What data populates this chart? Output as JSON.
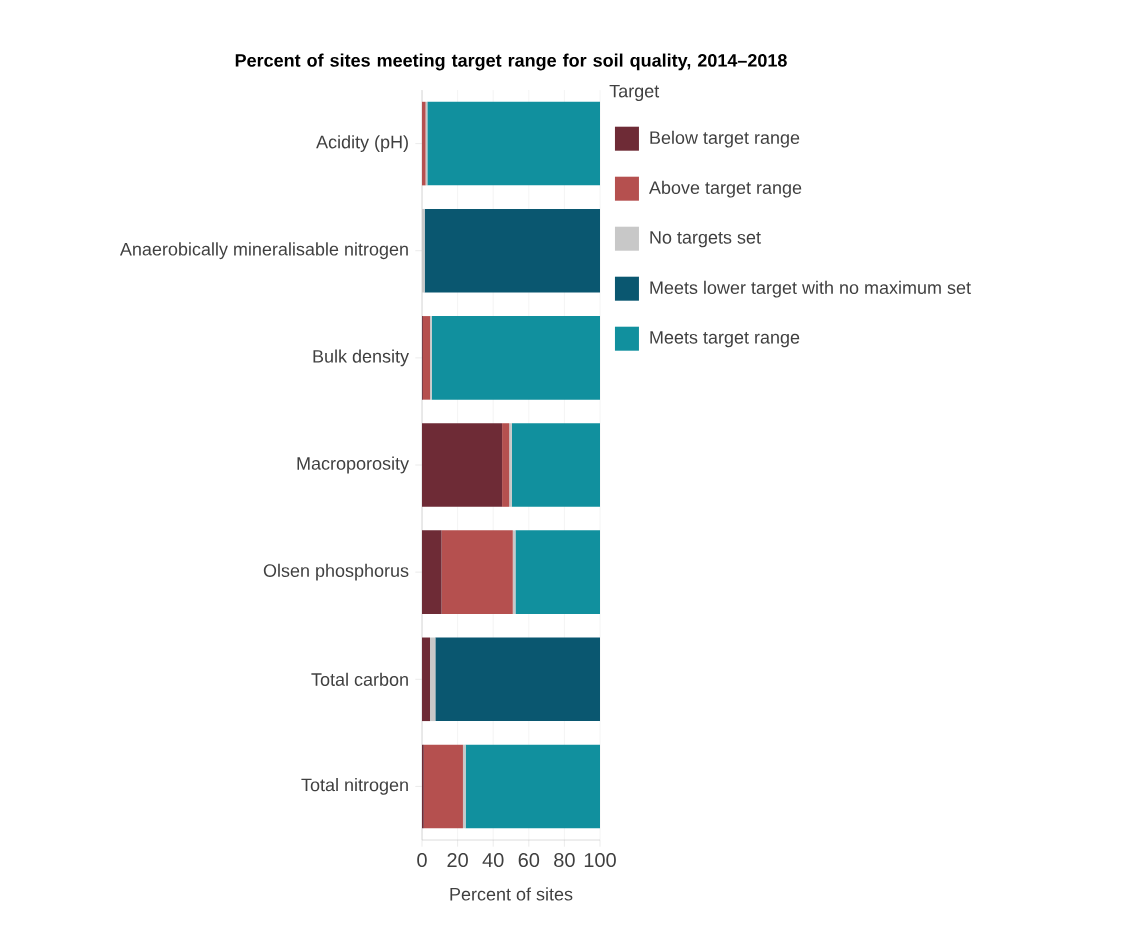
{
  "chart_data": {
    "type": "bar",
    "orientation": "horizontal",
    "stacked": true,
    "title": "Percent of sites meeting target range for soil quality, 2014–2018",
    "xlabel": "Percent of sites",
    "legend_title": "Target",
    "legend": "top right",
    "grid": "x",
    "categories": [
      "Acidity (pH)",
      "Anaerobically mineralisable nitrogen",
      "Bulk density",
      "Macroporosity",
      "Olsen phosphorus",
      "Total carbon",
      "Total nitrogen"
    ],
    "xlim": [
      0,
      100
    ],
    "xticks": [
      0,
      20,
      40,
      60,
      80,
      100
    ],
    "series": [
      {
        "name": "Below target range",
        "color": "#6e2b36",
        "values": [
          0,
          0,
          0.5,
          45,
          11,
          4.5,
          1
        ]
      },
      {
        "name": "Above target range",
        "color": "#b5504f",
        "values": [
          2,
          0,
          4,
          4,
          40,
          0,
          22
        ]
      },
      {
        "name": "No targets set",
        "color": "#c8c8c8",
        "values": [
          1,
          1.5,
          1,
          1.5,
          1.5,
          3,
          1.5
        ]
      },
      {
        "name": "Meets lower target with no maximum set",
        "color": "#0a5770",
        "values": [
          0,
          98.5,
          0,
          0,
          0,
          92.5,
          0
        ]
      },
      {
        "name": "Meets target range",
        "color": "#11909e",
        "values": [
          97,
          0,
          94.5,
          49.5,
          47.5,
          0,
          75.5
        ]
      }
    ]
  }
}
